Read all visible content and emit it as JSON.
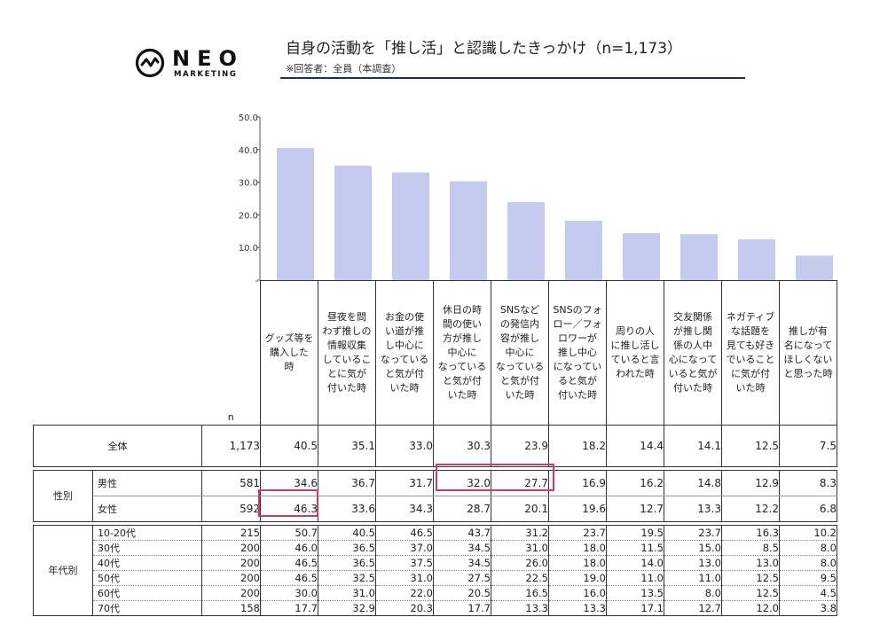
{
  "brand": {
    "word": "NEO",
    "sub": "MARKETING"
  },
  "title": "自身の活動を「推し活」と認識したきっかけ（n=1,173）",
  "subtitle": "※回答者：全員（本調査）",
  "n_label": "n",
  "colors": {
    "bar": "#c5cbee",
    "highlight": "#cc3a6f",
    "rule": "#1f2b6e"
  },
  "chart_data": {
    "type": "bar",
    "categories": [
      "グッズ等を購入した時",
      "昼夜を問わず推しの情報収集していることに気が付いた時",
      "お金の使い道が推し中心になっていると気が付いた時",
      "休日の時間の使い方が推し中心になっていると気が付いた時",
      "SNSなどの発信内容が推し中心になっていると気が付いた時",
      "SNSのフォロー／フォロワーが推し中心になっていると気が付いた時",
      "周りの人に推し活していると言われた時",
      "交友関係が推し関係の人中心になっていると気が付いた時",
      "ネガティブな話題を見ても好きでいることに気が付いた時",
      "推しが有名になってほしくないと思った時"
    ],
    "values": [
      40.5,
      35.1,
      33.0,
      30.3,
      23.9,
      18.2,
      14.4,
      14.1,
      12.5,
      7.5
    ],
    "ylim": [
      0,
      50
    ],
    "yticks": [
      "50.0",
      "40.0",
      "30.0",
      "20.0",
      "10.0",
      "-"
    ]
  },
  "headers": [
    [
      "グッズ等を",
      "購入した",
      "時"
    ],
    [
      "昼夜を問",
      "わず推しの",
      "情報収集",
      "しているこ",
      "とに気が",
      "付いた時"
    ],
    [
      "お金の使",
      "い道が推",
      "し中心に",
      "なっている",
      "と気が付",
      "いた時"
    ],
    [
      "休日の時",
      "間の使い",
      "方が推し",
      "中心に",
      "なっている",
      "と気が付",
      "いた時"
    ],
    [
      "SNSなど",
      "の発信内",
      "容が推し",
      "中心に",
      "なっている",
      "と気が付",
      "いた時"
    ],
    [
      "SNSのフォ",
      "ロー／フォ",
      "ロワーが",
      "推し中心",
      "になってい",
      "ると気が",
      "付いた時"
    ],
    [
      "周りの人",
      "に推し活し",
      "ていると言",
      "われた時"
    ],
    [
      "交友関係",
      "が推し関",
      "係の人中",
      "心になって",
      "いると気が",
      "付いた時"
    ],
    [
      "ネガティブ",
      "な話題を",
      "見ても好き",
      "でいること",
      "に気が付",
      "いた時"
    ],
    [
      "推しが有",
      "名になって",
      "ほしくない",
      "と思った時"
    ]
  ],
  "total": {
    "label": "全体",
    "n": "1,173",
    "values": [
      "40.5",
      "35.1",
      "33.0",
      "30.3",
      "23.9",
      "18.2",
      "14.4",
      "14.1",
      "12.5",
      "7.5"
    ]
  },
  "sex": {
    "label": "性別",
    "rows": [
      {
        "label": "男性",
        "n": "581",
        "values": [
          "34.6",
          "36.7",
          "31.7",
          "32.0",
          "27.7",
          "16.9",
          "16.2",
          "14.8",
          "12.9",
          "8.3"
        ]
      },
      {
        "label": "女性",
        "n": "592",
        "values": [
          "46.3",
          "33.6",
          "34.3",
          "28.7",
          "20.1",
          "19.6",
          "12.7",
          "13.3",
          "12.2",
          "6.8"
        ]
      }
    ]
  },
  "age": {
    "label": "年代別",
    "rows": [
      {
        "label": "10-20代",
        "n": "215",
        "values": [
          "50.7",
          "40.5",
          "46.5",
          "43.7",
          "31.2",
          "23.7",
          "19.5",
          "23.7",
          "16.3",
          "10.2"
        ]
      },
      {
        "label": "30代",
        "n": "200",
        "values": [
          "46.0",
          "36.5",
          "37.0",
          "34.5",
          "31.0",
          "18.0",
          "11.5",
          "15.0",
          "8.5",
          "8.0"
        ]
      },
      {
        "label": "40代",
        "n": "200",
        "values": [
          "46.5",
          "36.5",
          "37.5",
          "34.5",
          "26.0",
          "18.0",
          "14.0",
          "13.0",
          "13.0",
          "8.0"
        ]
      },
      {
        "label": "50代",
        "n": "200",
        "values": [
          "46.5",
          "32.5",
          "31.0",
          "27.5",
          "22.5",
          "19.0",
          "11.0",
          "11.0",
          "12.5",
          "9.5"
        ]
      },
      {
        "label": "60代",
        "n": "200",
        "values": [
          "30.0",
          "31.0",
          "22.0",
          "20.5",
          "16.5",
          "16.0",
          "13.5",
          "8.0",
          "12.5",
          "4.5"
        ]
      },
      {
        "label": "70代",
        "n": "158",
        "values": [
          "17.7",
          "32.9",
          "20.3",
          "17.7",
          "13.3",
          "13.3",
          "17.1",
          "12.7",
          "12.0",
          "3.8"
        ]
      }
    ]
  }
}
